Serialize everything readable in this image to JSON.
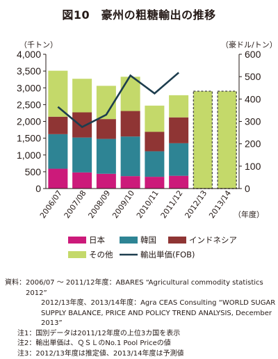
{
  "title": "図10　豪州の粗糖輸出の推移",
  "chart_data": {
    "type": "bar",
    "stacked": true,
    "categories": [
      "2006/07",
      "2007/08",
      "2008/09",
      "2009/10",
      "2010/11",
      "2011/12",
      "2012/13",
      "2013/14"
    ],
    "series": [
      {
        "name": "日本",
        "color": "#cc1a7a",
        "values": [
          590,
          480,
          440,
          370,
          350,
          380,
          null,
          null
        ]
      },
      {
        "name": "韓国",
        "color": "#2e8494",
        "values": [
          1030,
          1040,
          1040,
          1180,
          760,
          970,
          null,
          null
        ]
      },
      {
        "name": "インドネシア",
        "color": "#8f3534",
        "values": [
          520,
          750,
          590,
          760,
          580,
          770,
          null,
          null
        ]
      },
      {
        "name": "その他",
        "color": "#c4d96a",
        "values": [
          1370,
          1000,
          990,
          1020,
          780,
          660,
          null,
          null
        ]
      }
    ],
    "totals_dashed": {
      "name": "予測・推定",
      "color": "#c4d96a",
      "values": [
        null,
        null,
        null,
        null,
        null,
        null,
        2900,
        2900
      ]
    },
    "line": {
      "name": "輸出単価(FOB)",
      "color": "#1d3d4e",
      "axis": "right",
      "values": [
        365,
        275,
        330,
        505,
        425,
        518,
        null,
        null
      ]
    },
    "y_left": {
      "label": "（千トン）",
      "min": 0,
      "max": 4000,
      "ticks": [
        "0",
        "500",
        "1,000",
        "1,500",
        "2,000",
        "2,500",
        "3,000",
        "3,500",
        "4,000"
      ]
    },
    "y_right": {
      "label": "（豪ドル/トン）",
      "min": 0,
      "max": 600,
      "ticks": [
        "0",
        "100",
        "200",
        "300",
        "400",
        "500",
        "600"
      ]
    },
    "x_unit": "（年度）",
    "grid": false,
    "legend_position": "bottom"
  },
  "legend": [
    "日本",
    "韓国",
    "インドネシア",
    "その他",
    "輸出単価(FOB)"
  ],
  "notes": {
    "source_label": "資料：",
    "source_1": "2006/07 ～ 2011/12年度：ABARES “Agricultural commodity statistics 2012”",
    "source_2": "2012/13年度、2013/14年度：Agra CEAS Consulting “WORLD SUGAR SUPPLY BALANCE, PRICE AND POLICY TREND ANALYSIS, December 2013”",
    "note1_label": "注1：",
    "note1": "国別データは2011/12年度の上位3カ国を表示",
    "note2_label": "注2：",
    "note2": "輸出単価は、ＱＳＬのNo.1 Pool Priceの値",
    "note3_label": "注3：",
    "note3": "2012/13年度は推定値、2013/14年度は予測値"
  }
}
